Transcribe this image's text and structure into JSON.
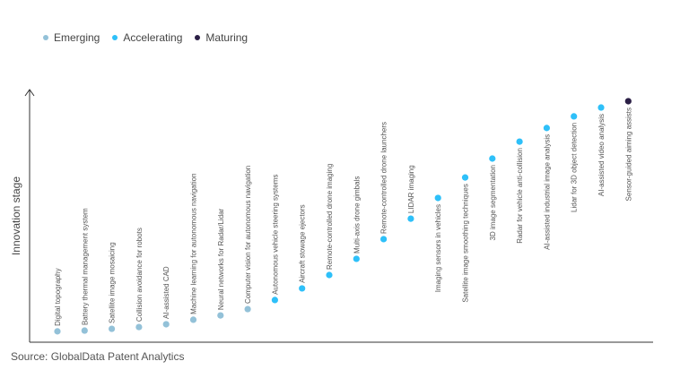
{
  "chart_data": {
    "type": "scatter",
    "title": "",
    "ylabel": "Innovation stage",
    "xlabel": "",
    "ylim": [
      0,
      100
    ],
    "legend_placement": "top-left",
    "grid": false,
    "legend": [
      {
        "name": "Emerging",
        "color": "#93c1d8"
      },
      {
        "name": "Accelerating",
        "color": "#2ec0f9"
      },
      {
        "name": "Maturing",
        "color": "#2b1f45"
      }
    ],
    "points": [
      {
        "label": "Digital topography",
        "stage": 4.3,
        "category": "Emerging"
      },
      {
        "label": "Battery thermal management system",
        "stage": 4.6,
        "category": "Emerging"
      },
      {
        "label": "Satellite image mosaicing",
        "stage": 5.3,
        "category": "Emerging"
      },
      {
        "label": "Collision avoidance for robots",
        "stage": 6.0,
        "category": "Emerging"
      },
      {
        "label": "AI-assisted CAD",
        "stage": 7.1,
        "category": "Emerging"
      },
      {
        "label": "Machine learning for autonomous navigation",
        "stage": 8.9,
        "category": "Emerging"
      },
      {
        "label": "Neural networks for Radar/Lidar",
        "stage": 10.6,
        "category": "Emerging"
      },
      {
        "label": "Computer vision for autonomous navigation",
        "stage": 13.1,
        "category": "Emerging"
      },
      {
        "label": "Autonomous vehicle steering systems",
        "stage": 16.7,
        "category": "Accelerating"
      },
      {
        "label": "Aircraft stowage ejectors",
        "stage": 21.3,
        "category": "Accelerating"
      },
      {
        "label": "Remote-controlled drone imaging",
        "stage": 26.6,
        "category": "Accelerating"
      },
      {
        "label": "Multi-axis drone gimbals",
        "stage": 33.0,
        "category": "Accelerating"
      },
      {
        "label": "Remote-controlled drone launchers",
        "stage": 40.8,
        "category": "Accelerating"
      },
      {
        "label": "LIDAR imaging",
        "stage": 48.9,
        "category": "Accelerating"
      },
      {
        "label": "Imaging sensors in vehicles",
        "stage": 57.1,
        "category": "Accelerating"
      },
      {
        "label": "Satellite image smoothing techniques",
        "stage": 65.2,
        "category": "Accelerating"
      },
      {
        "label": "3D image segmentation",
        "stage": 72.7,
        "category": "Accelerating"
      },
      {
        "label": "Radar for vehicle anti-collision",
        "stage": 79.4,
        "category": "Accelerating"
      },
      {
        "label": "AI-assisted industrial image analysis",
        "stage": 84.8,
        "category": "Accelerating"
      },
      {
        "label": "Lidar for 3D object detection",
        "stage": 89.4,
        "category": "Accelerating"
      },
      {
        "label": "AI-assisted video analysis",
        "stage": 92.9,
        "category": "Accelerating"
      },
      {
        "label": "Sensor-guided aiming assists",
        "stage": 95.4,
        "category": "Maturing"
      }
    ]
  },
  "source": "Source: GlobalData Patent Analytics"
}
